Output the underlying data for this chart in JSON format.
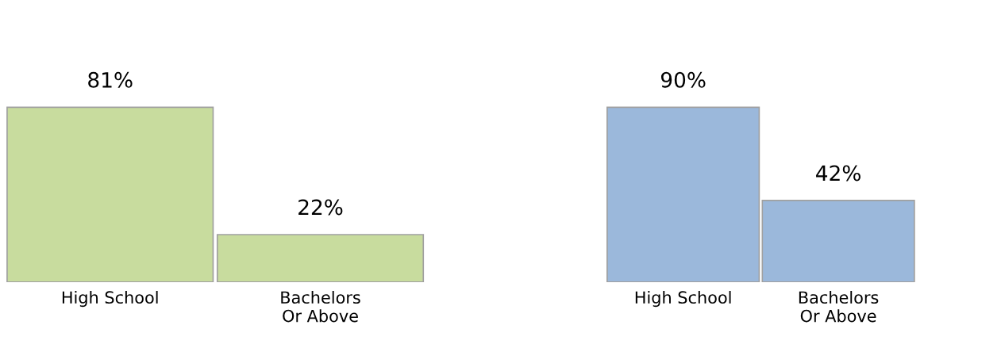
{
  "chart_data": [
    {
      "type": "bar",
      "categories": [
        "High School",
        "Bachelors\nOr Above"
      ],
      "values": [
        81,
        22
      ],
      "color": "#c8dc9e",
      "data_labels": true,
      "value_labels": [
        "81%",
        "22%"
      ]
    },
    {
      "type": "bar",
      "categories": [
        "High School",
        "Bachelors\nOr Above"
      ],
      "values": [
        90,
        42
      ],
      "color": "#9bb8db",
      "data_labels": true,
      "value_labels": [
        "90%",
        "42%"
      ]
    }
  ]
}
